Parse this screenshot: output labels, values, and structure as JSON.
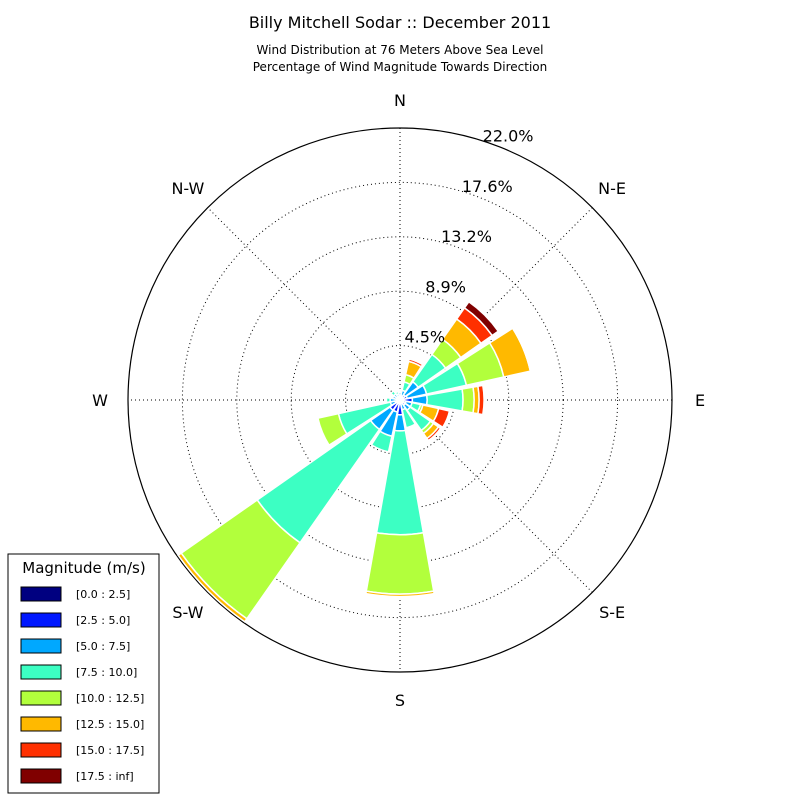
{
  "chart_data": {
    "type": "windrose",
    "title": "Billy Mitchell Sodar :: December 2011",
    "subtitle_lines": [
      "Wind Distribution at 76 Meters Above Sea Level",
      "Percentage of Wind Magnitude Towards Direction"
    ],
    "direction_labels": [
      "N",
      "N-E",
      "E",
      "S-E",
      "S",
      "S-W",
      "W",
      "N-W"
    ],
    "ring_labels": [
      "4.5%",
      "8.9%",
      "13.2%",
      "17.6%",
      "22.0%"
    ],
    "radial_max": 22.0,
    "legend_title": "Magnitude (m/s)",
    "bins": [
      {
        "label": "[0.0 : 2.5]",
        "color": "#000080"
      },
      {
        "label": "[2.5 : 5.0]",
        "color": "#0018ff"
      },
      {
        "label": "[5.0 : 7.5]",
        "color": "#00a8ff"
      },
      {
        "label": "[7.5 : 10.0]",
        "color": "#3cffc3"
      },
      {
        "label": "[10.0 : 12.5]",
        "color": "#b2ff3c"
      },
      {
        "label": "[12.5 : 15.0]",
        "color": "#ffb900"
      },
      {
        "label": "[15.0 : 17.5]",
        "color": "#ff3000"
      },
      {
        "label": "[17.5 : inf]",
        "color": "#800000"
      }
    ],
    "directions_deg": [
      0,
      22.5,
      45,
      67.5,
      90,
      112.5,
      135,
      157.5,
      180,
      202.5,
      225,
      247.5,
      270,
      292.5,
      315,
      337.5
    ],
    "cumulative_percent": [
      [
        0.1,
        0.4,
        0.6,
        0.7,
        0.75,
        0.8,
        0.85,
        0.85
      ],
      [
        0.15,
        0.35,
        0.8,
        1.5,
        2.1,
        3.2,
        3.4,
        3.5
      ],
      [
        0.2,
        0.5,
        1.8,
        4.5,
        6.0,
        8.0,
        9.1,
        9.7
      ],
      [
        0.3,
        0.6,
        2.2,
        5.5,
        8.6,
        10.8,
        10.85,
        10.85
      ],
      [
        0.3,
        1.0,
        2.2,
        5.1,
        6.0,
        6.4,
        6.8,
        6.8
      ],
      [
        0.2,
        0.5,
        1.0,
        1.7,
        1.9,
        3.2,
        4.1,
        4.1
      ],
      [
        0.2,
        0.5,
        1.0,
        3.0,
        3.3,
        3.8,
        4.0,
        4.0
      ],
      [
        0.1,
        0.3,
        0.8,
        2.3,
        2.3,
        2.3,
        2.3,
        2.3
      ],
      [
        0.2,
        1.2,
        2.5,
        10.9,
        15.7,
        15.9,
        15.9,
        15.9
      ],
      [
        0.3,
        1.0,
        3.0,
        4.3,
        4.3,
        4.3,
        4.3,
        4.3
      ],
      [
        0.3,
        1.0,
        2.9,
        14.1,
        21.6,
        21.9,
        21.9,
        21.9
      ],
      [
        0.2,
        0.4,
        0.8,
        5.1,
        6.8,
        6.8,
        6.8,
        6.8
      ],
      [
        0.1,
        0.3,
        0.8,
        1.1,
        1.1,
        1.1,
        1.1,
        1.1
      ],
      [
        0.1,
        0.3,
        0.6,
        0.6,
        0.6,
        0.6,
        0.6,
        0.6
      ],
      [
        0.1,
        0.3,
        0.6,
        0.9,
        0.9,
        0.9,
        0.9,
        0.9
      ],
      [
        0.1,
        0.25,
        0.5,
        0.7,
        0.8,
        0.9,
        0.9,
        0.9
      ]
    ]
  }
}
